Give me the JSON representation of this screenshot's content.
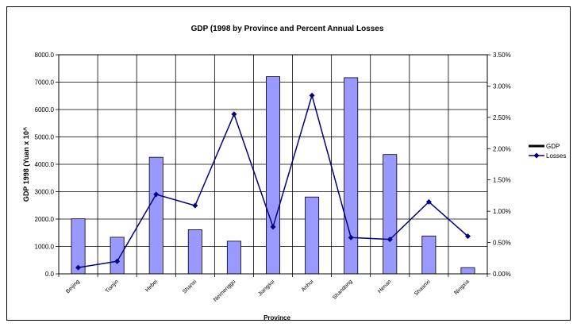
{
  "chart_data": {
    "type": "bar",
    "title": "GDP (1998 by Province and Percent Annual Losses",
    "xlabel": "Province",
    "ylabel": "GDP 1998 (Yuan x 10^",
    "categories": [
      "Beijing",
      "Tianjin",
      "Hebei",
      "Shanxi",
      "Neimenggu",
      "Jiangsui",
      "Anhui",
      "Shandong",
      "Henan",
      "Shaanxi",
      "Ningxia"
    ],
    "ylim": [
      0,
      8000
    ],
    "y_ticks": [
      "0.0",
      "1000.0",
      "2000.0",
      "3000.0",
      "4000.0",
      "5000.0",
      "6000.0",
      "7000.0",
      "8000.0"
    ],
    "y2lim": [
      0,
      3.5
    ],
    "y2_ticks": [
      "0.00%",
      "0.50%",
      "1.00%",
      "1.50%",
      "2.00%",
      "2.50%",
      "3.00%",
      "3.50%"
    ],
    "grid": true,
    "legend_position": "right",
    "series": [
      {
        "name": "GDP",
        "type": "bar",
        "axis": "left",
        "color": "#9999ff",
        "values": [
          2010,
          1336,
          4256,
          1611,
          1192,
          7200,
          2805,
          7162,
          4357,
          1382,
          227
        ]
      },
      {
        "name": "Losses",
        "type": "line",
        "axis": "right",
        "color": "#000080",
        "values": [
          0.1,
          0.2,
          1.27,
          1.09,
          2.55,
          0.75,
          2.85,
          0.58,
          0.55,
          1.15,
          0.6
        ]
      }
    ],
    "legend": [
      {
        "name": "GDP",
        "color": "#000000",
        "marker": "line"
      },
      {
        "name": "Losses",
        "color": "#000080",
        "marker": "diamond"
      }
    ]
  }
}
